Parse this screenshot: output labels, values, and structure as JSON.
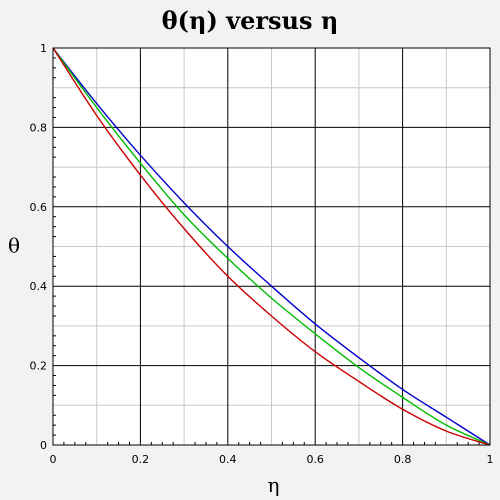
{
  "chart_data": {
    "type": "line",
    "title": "θ(η) versus η",
    "xlabel": "η",
    "ylabel": "θ",
    "xlim": [
      0,
      1
    ],
    "ylim": [
      0,
      1
    ],
    "grid": true,
    "x_ticks": [
      "0",
      "0.2",
      "0.4",
      "0.6",
      "0.8",
      "1"
    ],
    "y_ticks": [
      "0",
      "0.2",
      "0.4",
      "0.6",
      "0.8",
      "1"
    ],
    "x": [
      0,
      0.1,
      0.2,
      0.3,
      0.4,
      0.5,
      0.6,
      0.7,
      0.8,
      0.9,
      1.0
    ],
    "series": [
      {
        "color": "#0000cc",
        "values": [
          1,
          0.86,
          0.73,
          0.61,
          0.5,
          0.4,
          0.305,
          0.22,
          0.14,
          0.07,
          0
        ]
      },
      {
        "color": "#00bb00",
        "values": [
          1,
          0.85,
          0.71,
          0.58,
          0.47,
          0.37,
          0.28,
          0.195,
          0.12,
          0.05,
          0
        ]
      },
      {
        "color": "#cc0000",
        "values": [
          1,
          0.83,
          0.68,
          0.545,
          0.425,
          0.325,
          0.235,
          0.16,
          0.09,
          0.035,
          0
        ]
      }
    ]
  }
}
